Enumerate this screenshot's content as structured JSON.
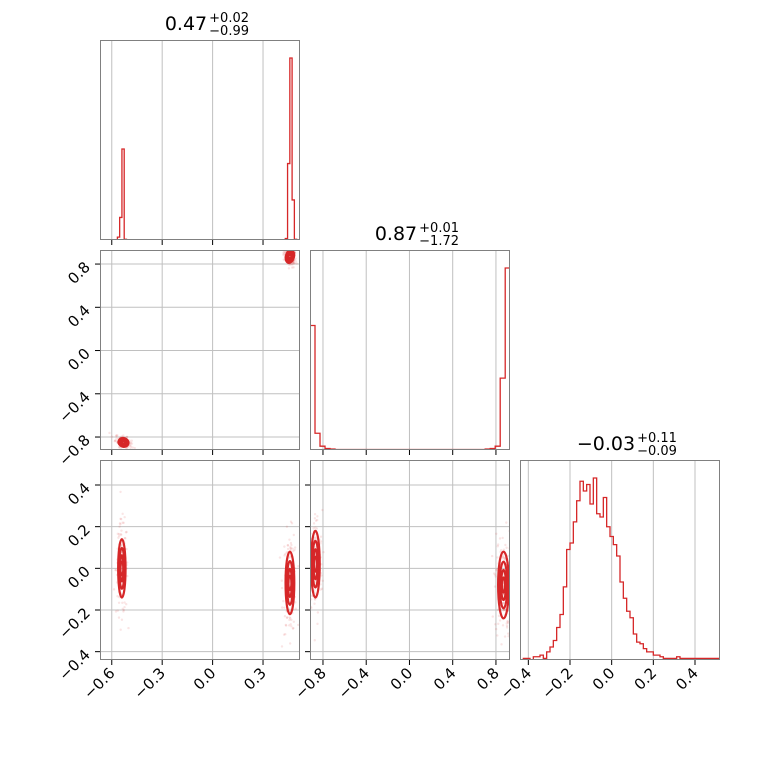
{
  "colors": {
    "series": "#d62728",
    "grid": "#c0c0c0",
    "frame": "#808080"
  },
  "chart_data": {
    "type": "corner",
    "titles": [
      {
        "center": "0.47",
        "plus": "+0.02",
        "minus": "−0.99"
      },
      {
        "center": "0.87",
        "plus": "+0.01",
        "minus": "−1.72"
      },
      {
        "center": "−0.03",
        "plus": "+0.11",
        "minus": "−0.09"
      }
    ],
    "axes": [
      {
        "range": [
          -0.67,
          0.52
        ],
        "ticks": [
          -0.6,
          -0.3,
          0.0,
          0.3
        ],
        "tick_labels": [
          "−0.6",
          "−0.3",
          "0.0",
          "0.3"
        ]
      },
      {
        "range": [
          -0.92,
          0.93
        ],
        "ticks": [
          -0.8,
          -0.4,
          0.0,
          0.4,
          0.8
        ],
        "tick_labels": [
          "−0.8",
          "−0.4",
          "0.0",
          "0.4",
          "0.8"
        ]
      },
      {
        "range": [
          -0.44,
          0.52
        ],
        "ticks": [
          -0.4,
          -0.2,
          0.0,
          0.2,
          0.4
        ],
        "tick_labels": [
          "−0.4",
          "−0.2",
          "0.0",
          "0.2",
          "0.4"
        ]
      }
    ],
    "histograms": [
      {
        "param": 0,
        "bin_edges_start": -0.58,
        "bin_width": 0.0135,
        "counts": [
          1,
          8,
          62,
          250,
          2,
          0,
          0,
          0,
          0,
          0,
          0,
          0,
          0,
          0,
          0,
          0,
          0,
          0,
          0,
          0,
          0,
          0,
          0,
          0,
          0,
          0,
          0,
          0,
          0,
          0,
          0,
          0,
          0,
          0,
          0,
          0,
          0,
          0,
          0,
          0,
          0,
          0,
          0,
          0,
          0,
          0,
          0,
          0,
          0,
          0,
          0,
          0,
          0,
          0,
          0,
          0,
          0,
          0,
          0,
          0,
          0,
          0,
          0,
          0,
          0,
          0,
          0,
          0,
          0,
          0,
          0,
          0,
          0,
          0,
          0,
          4,
          210,
          500,
          110,
          2
        ]
      },
      {
        "param": 1,
        "bin_edges_start": -0.92,
        "bin_width": 0.0463,
        "counts": [
          260,
          35,
          8,
          3,
          2,
          1,
          1,
          1,
          1,
          1,
          1,
          1,
          1,
          1,
          1,
          1,
          1,
          1,
          1,
          1,
          1,
          1,
          1,
          1,
          1,
          1,
          1,
          1,
          1,
          1,
          1,
          1,
          1,
          1,
          1,
          2,
          3,
          8,
          150,
          380
        ]
      },
      {
        "param": 2,
        "bin_edges_start": -0.44,
        "bin_width": 0.016,
        "counts": [
          0,
          1,
          1,
          0,
          2,
          2,
          3,
          1,
          5,
          8,
          12,
          20,
          28,
          45,
          68,
          72,
          85,
          98,
          110,
          104,
          108,
          96,
          112,
          90,
          88,
          100,
          82,
          76,
          71,
          64,
          48,
          38,
          30,
          26,
          16,
          11,
          10,
          7,
          5,
          5,
          3,
          3,
          2,
          1,
          1,
          1,
          1,
          2,
          1,
          1,
          1,
          1,
          1,
          1,
          1,
          1,
          1,
          1,
          1,
          1
        ]
      }
    ],
    "pairs": [
      {
        "x_param": 0,
        "y_param": 1,
        "clusters": [
          {
            "x": 0.46,
            "y": 0.87,
            "sx": 0.012,
            "sy": 0.03,
            "rho": -0.4
          },
          {
            "x": -0.53,
            "y": -0.85,
            "sx": 0.015,
            "sy": 0.02,
            "rho": -0.5
          }
        ]
      },
      {
        "x_param": 0,
        "y_param": 2,
        "clusters": [
          {
            "x": -0.54,
            "y": 0.0,
            "sx": 0.011,
            "sy": 0.07,
            "rho": 0.0
          },
          {
            "x": 0.46,
            "y": -0.07,
            "sx": 0.013,
            "sy": 0.075,
            "rho": 0.0
          }
        ]
      },
      {
        "x_param": 1,
        "y_param": 2,
        "clusters": [
          {
            "x": -0.87,
            "y": 0.02,
            "sx": 0.02,
            "sy": 0.08,
            "rho": 0.0
          },
          {
            "x": 0.87,
            "y": -0.08,
            "sx": 0.025,
            "sy": 0.08,
            "rho": 0.0
          }
        ]
      }
    ]
  }
}
